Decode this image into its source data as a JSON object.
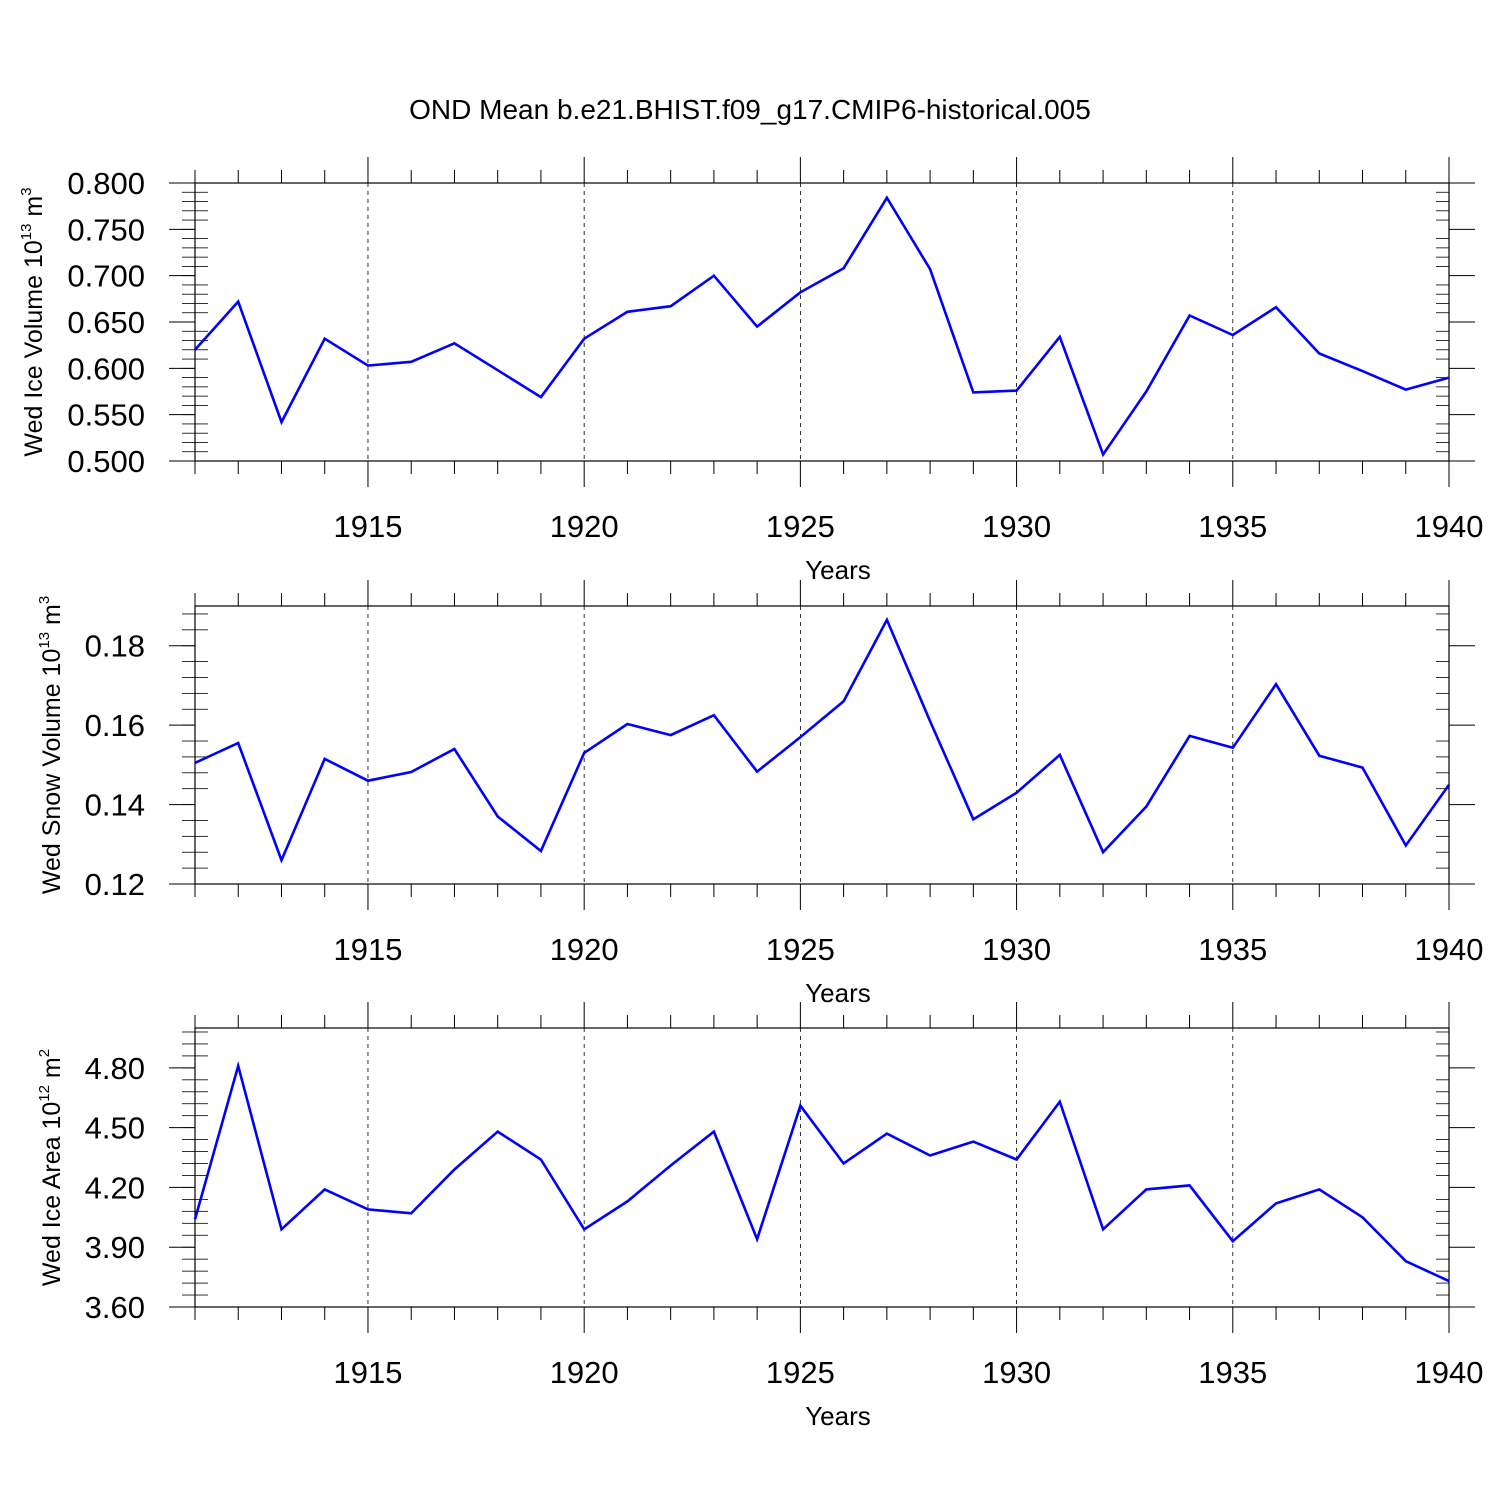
{
  "figure_title": "OND Mean b.e21.BHIST.f09_g17.CMIP6-historical.005",
  "colors": {
    "line": "#0000ff",
    "axes": "#000000",
    "grid": "#000000"
  },
  "chart_data": [
    {
      "type": "line",
      "title": "OND Mean b.e21.BHIST.f09_g17.CMIP6-historical.005",
      "ylabel": {
        "main": "Wed Ice Volume 10",
        "exp": "13",
        "mid": " m",
        "unit_exp": "3"
      },
      "xlabel": "Years",
      "xlim": [
        1911,
        1940
      ],
      "ylim": [
        0.5,
        0.8
      ],
      "xticks": [
        1915,
        1920,
        1925,
        1930,
        1935,
        1940
      ],
      "xtick_labels": [
        "1915",
        "1920",
        "1925",
        "1930",
        "1935",
        "1940"
      ],
      "yticks": [
        0.5,
        0.55,
        0.6,
        0.65,
        0.7,
        0.75,
        0.8
      ],
      "ytick_labels": [
        "0.500",
        "0.550",
        "0.600",
        "0.650",
        "0.700",
        "0.750",
        "0.800"
      ],
      "grid": "vertical dashed at major x ticks",
      "x": [
        1911,
        1912,
        1913,
        1914,
        1915,
        1916,
        1917,
        1918,
        1919,
        1920,
        1921,
        1922,
        1923,
        1924,
        1925,
        1926,
        1927,
        1928,
        1929,
        1930,
        1931,
        1932,
        1933,
        1934,
        1935,
        1936,
        1937,
        1938,
        1939,
        1940
      ],
      "values": [
        0.62,
        0.672,
        0.542,
        0.632,
        0.603,
        0.607,
        0.627,
        0.598,
        0.569,
        0.632,
        0.661,
        0.667,
        0.7,
        0.645,
        0.682,
        0.708,
        0.784,
        0.707,
        0.574,
        0.576,
        0.634,
        0.507,
        0.575,
        0.657,
        0.636,
        0.666,
        0.616,
        0.597,
        0.577,
        0.59
      ]
    },
    {
      "type": "line",
      "ylabel": {
        "main": "Wed Snow Volume 10",
        "exp": "13",
        "mid": " m",
        "unit_exp": "3"
      },
      "xlabel": "Years",
      "xlim": [
        1911,
        1940
      ],
      "ylim": [
        0.12,
        0.19
      ],
      "xticks": [
        1915,
        1920,
        1925,
        1930,
        1935,
        1940
      ],
      "xtick_labels": [
        "1915",
        "1920",
        "1925",
        "1930",
        "1935",
        "1940"
      ],
      "yticks": [
        0.12,
        0.14,
        0.16,
        0.18
      ],
      "ytick_labels": [
        "0.12",
        "0.14",
        "0.16",
        "0.18"
      ],
      "grid": "vertical dashed at major x ticks",
      "x": [
        1911,
        1912,
        1913,
        1914,
        1915,
        1916,
        1917,
        1918,
        1919,
        1920,
        1921,
        1922,
        1923,
        1924,
        1925,
        1926,
        1927,
        1928,
        1929,
        1930,
        1931,
        1932,
        1933,
        1934,
        1935,
        1936,
        1937,
        1938,
        1939,
        1940
      ],
      "values": [
        0.1505,
        0.1555,
        0.126,
        0.1515,
        0.146,
        0.1482,
        0.154,
        0.137,
        0.1283,
        0.153,
        0.1603,
        0.1575,
        0.1625,
        0.1483,
        0.157,
        0.166,
        0.1865,
        0.161,
        0.1363,
        0.143,
        0.1525,
        0.128,
        0.1395,
        0.1573,
        0.1543,
        0.1703,
        0.1523,
        0.1493,
        0.1297,
        0.145
      ]
    },
    {
      "type": "line",
      "ylabel": {
        "main": "Wed Ice Area 10",
        "exp": "12",
        "mid": " m",
        "unit_exp": "2"
      },
      "xlabel": "Years",
      "xlim": [
        1911,
        1940
      ],
      "ylim": [
        3.6,
        5.0
      ],
      "xticks": [
        1915,
        1920,
        1925,
        1930,
        1935,
        1940
      ],
      "xtick_labels": [
        "1915",
        "1920",
        "1925",
        "1930",
        "1935",
        "1940"
      ],
      "yticks": [
        3.6,
        3.9,
        4.2,
        4.5,
        4.8
      ],
      "ytick_labels": [
        "3.60",
        "3.90",
        "4.20",
        "4.50",
        "4.80"
      ],
      "grid": "vertical dashed at major x ticks",
      "x": [
        1911,
        1912,
        1913,
        1914,
        1915,
        1916,
        1917,
        1918,
        1919,
        1920,
        1921,
        1922,
        1923,
        1924,
        1925,
        1926,
        1927,
        1928,
        1929,
        1930,
        1931,
        1932,
        1933,
        1934,
        1935,
        1936,
        1937,
        1938,
        1939,
        1940
      ],
      "values": [
        4.04,
        4.81,
        3.99,
        4.19,
        4.09,
        4.07,
        4.29,
        4.48,
        4.34,
        3.99,
        4.13,
        4.31,
        4.48,
        3.94,
        4.61,
        4.32,
        4.47,
        4.36,
        4.43,
        4.34,
        4.63,
        3.99,
        4.19,
        4.21,
        3.93,
        4.12,
        4.19,
        4.05,
        3.83,
        3.73
      ]
    }
  ]
}
